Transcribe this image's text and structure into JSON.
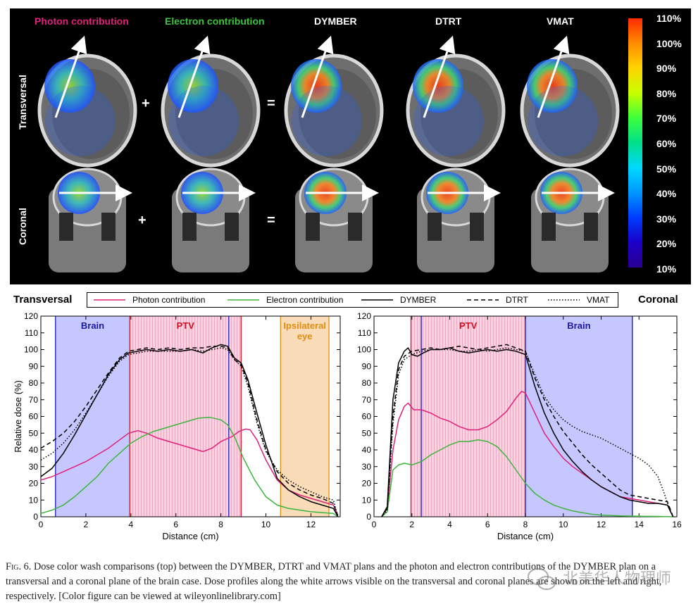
{
  "panel_titles": [
    {
      "text": "Photon contribution",
      "color": "#e0207a"
    },
    {
      "text": "Electron contribution",
      "color": "#3cc43c"
    },
    {
      "text": "DYMBER",
      "color": "#ffffff"
    },
    {
      "text": "DTRT",
      "color": "#ffffff"
    },
    {
      "text": "VMAT",
      "color": "#ffffff"
    }
  ],
  "row_labels": {
    "transversal": "Transversal",
    "coronal": "Coronal"
  },
  "operators": {
    "plus": "+",
    "equals": "="
  },
  "colorbar": {
    "labels": [
      "110%",
      "100%",
      "90%",
      "80%",
      "70%",
      "60%",
      "50%",
      "40%",
      "30%",
      "20%",
      "10%"
    ],
    "colors": [
      "#ff2a00",
      "#ff8c00",
      "#ffd400",
      "#c8ff00",
      "#3cff3c",
      "#00e08a",
      "#00d8ff",
      "#0096ff",
      "#003cff",
      "#1a00c8",
      "#2a0090"
    ]
  },
  "profile_titles": {
    "left": "Transversal",
    "right": "Coronal"
  },
  "legend": [
    {
      "name": "Photon contribution",
      "color": "#e0207a",
      "dash": "solid"
    },
    {
      "name": "Electron contribution",
      "color": "#3cb43c",
      "dash": "solid"
    },
    {
      "name": "DYMBER",
      "color": "#000000",
      "dash": "solid"
    },
    {
      "name": "DTRT",
      "color": "#000000",
      "dash": "dashed"
    },
    {
      "name": "VMAT",
      "color": "#000000",
      "dash": "dotted"
    }
  ],
  "chart_data": [
    {
      "type": "line",
      "title": "Transversal",
      "xlabel": "Distance (cm)",
      "ylabel": "Relative dose (%)",
      "xlim": [
        0,
        13.3
      ],
      "ylim": [
        0,
        120
      ],
      "xticks": [
        0,
        2,
        4,
        6,
        8,
        10,
        12
      ],
      "yticks": [
        0,
        10,
        20,
        30,
        40,
        50,
        60,
        70,
        80,
        90,
        100,
        110,
        120
      ],
      "regions": [
        {
          "name": "Brain",
          "x0": 0.65,
          "x1": 3.95,
          "fill": "#b4b4ff",
          "edge": "#2020c0",
          "label_color": "#1a1aa0",
          "pattern": "none"
        },
        {
          "name": "PTV",
          "x0": 3.95,
          "x1": 8.9,
          "fill": "#f4c4cc",
          "edge": "#e02030",
          "label_color": "#d01020",
          "pattern": "stripes"
        },
        {
          "name": "Ipsilateral eye",
          "label_lines": [
            "Ipsilateral",
            "eye"
          ],
          "x0": 10.65,
          "x1": 12.8,
          "fill": "#f8d2a0",
          "edge": "#e08c10",
          "label_color": "#e08c10",
          "pattern": "none"
        }
      ],
      "extra_lines": [
        {
          "x": 8.35,
          "color": "#2020c0"
        }
      ],
      "series": [
        {
          "name": "Photon contribution",
          "x": [
            0,
            0.5,
            1,
            1.5,
            2,
            2.5,
            3,
            3.5,
            3.9,
            4.3,
            4.7,
            5.2,
            5.7,
            6.2,
            6.7,
            7.2,
            7.6,
            8.0,
            8.5,
            8.8,
            9.1,
            9.3,
            9.6,
            10.0,
            10.5,
            11.0,
            11.5,
            12.0,
            12.5,
            13.0,
            13.2
          ],
          "y": [
            22,
            24,
            27,
            30,
            33,
            37,
            41,
            46,
            50,
            51.5,
            50,
            47,
            45,
            43,
            41,
            39,
            41,
            45,
            48,
            51,
            52.5,
            52,
            46,
            34,
            22,
            16,
            13,
            11,
            9,
            7,
            1
          ]
        },
        {
          "name": "Electron contribution",
          "x": [
            0,
            0.5,
            1,
            1.5,
            2,
            2.5,
            3,
            3.5,
            4,
            4.5,
            5,
            5.5,
            6,
            6.5,
            7,
            7.5,
            8,
            8.3,
            8.6,
            9.0,
            9.5,
            10.0,
            10.5,
            11.0,
            11.5,
            12.0,
            12.5,
            13.0,
            13.2
          ],
          "y": [
            2,
            4,
            7,
            12,
            18,
            24,
            32,
            38,
            44,
            48,
            51,
            53,
            55,
            57,
            59,
            59.5,
            58,
            55,
            48,
            35,
            22,
            12,
            7,
            5,
            4,
            3,
            2.5,
            2,
            0
          ]
        },
        {
          "name": "DYMBER",
          "x": [
            0,
            0.5,
            1,
            1.5,
            2,
            2.5,
            3,
            3.5,
            3.9,
            4.3,
            4.7,
            5.2,
            5.7,
            6.2,
            6.7,
            7.2,
            7.6,
            8.0,
            8.3,
            8.6,
            8.9,
            9.2,
            9.6,
            10.0,
            10.5,
            11.0,
            11.5,
            12.0,
            12.5,
            13.0,
            13.2
          ],
          "y": [
            24,
            29,
            38,
            49,
            61,
            73,
            85,
            94,
            98,
            99,
            100,
            99,
            100,
            99,
            100,
            98,
            101,
            103,
            102,
            95,
            92,
            82,
            62,
            43,
            23,
            16,
            12,
            9,
            7,
            5,
            0
          ]
        },
        {
          "name": "DTRT",
          "x": [
            0,
            0.5,
            1,
            1.5,
            2,
            2.5,
            3,
            3.5,
            3.9,
            4.3,
            4.7,
            5.2,
            5.7,
            6.2,
            6.7,
            7.2,
            7.6,
            8.0,
            8.3,
            8.6,
            8.9,
            9.2,
            9.6,
            10.0,
            10.5,
            11.0,
            11.5,
            12.0,
            12.5,
            13.0,
            13.2
          ],
          "y": [
            41,
            45,
            50,
            57,
            66,
            76,
            86,
            95,
            99,
            100,
            101,
            100,
            101,
            100,
            101,
            101,
            102,
            102,
            101,
            94,
            91,
            80,
            58,
            40,
            27,
            20,
            16,
            13,
            11,
            8,
            0
          ]
        },
        {
          "name": "VMAT",
          "x": [
            0,
            0.5,
            1,
            1.5,
            2,
            2.5,
            3,
            3.5,
            3.9,
            4.3,
            4.7,
            5.2,
            5.7,
            6.2,
            6.7,
            7.2,
            7.6,
            8.0,
            8.3,
            8.6,
            8.9,
            9.2,
            9.6,
            10.0,
            10.5,
            11.0,
            11.5,
            12.0,
            12.5,
            13.0,
            13.2
          ],
          "y": [
            34,
            38,
            44,
            52,
            62,
            73,
            84,
            93,
            97,
            98,
            99,
            99,
            99,
            99,
            100,
            99,
            100,
            101,
            100,
            94,
            90,
            78,
            56,
            39,
            28,
            22,
            18,
            15,
            12,
            10,
            0
          ]
        }
      ]
    },
    {
      "type": "line",
      "title": "Coronal",
      "xlabel": "Distance (cm)",
      "ylabel": "",
      "xlim": [
        0,
        16
      ],
      "ylim": [
        0,
        120
      ],
      "xticks": [
        0,
        2,
        4,
        6,
        8,
        10,
        12,
        14,
        16
      ],
      "yticks": [
        0,
        10,
        20,
        30,
        40,
        50,
        60,
        70,
        80,
        90,
        100,
        110,
        120
      ],
      "regions": [
        {
          "name": "PTV",
          "x0": 1.95,
          "x1": 8.0,
          "fill": "#f4c4cc",
          "edge": "#e02030",
          "label_color": "#d01020",
          "pattern": "stripes"
        },
        {
          "name": "Brain",
          "x0": 8.0,
          "x1": 13.65,
          "fill": "#b4b4ff",
          "edge": "#2020c0",
          "label_color": "#1a1aa0",
          "pattern": "none"
        }
      ],
      "extra_lines": [
        {
          "x": 2.5,
          "color": "#2020c0"
        },
        {
          "x": 13.65,
          "color": "#2020c0"
        }
      ],
      "series": [
        {
          "name": "Photon contribution",
          "x": [
            0.4,
            0.7,
            1.0,
            1.3,
            1.6,
            1.8,
            2.1,
            2.5,
            3.0,
            3.5,
            4.0,
            4.5,
            5.0,
            5.5,
            6.0,
            6.5,
            7.0,
            7.5,
            7.8,
            8.0,
            8.5,
            9.0,
            9.5,
            10.0,
            10.5,
            11.0,
            11.5,
            12.0,
            12.5,
            13.0,
            13.5,
            14.0,
            14.5,
            15.0,
            15.5,
            15.8
          ],
          "y": [
            0,
            5,
            40,
            58,
            66,
            68,
            64,
            64,
            62,
            59,
            57,
            54,
            52,
            52,
            54,
            58,
            63,
            71,
            75,
            74,
            62,
            50,
            42,
            35,
            30,
            26,
            22,
            18,
            15,
            12,
            11,
            10,
            9,
            8,
            7,
            0
          ]
        },
        {
          "name": "Electron contribution",
          "x": [
            0.4,
            0.7,
            1.0,
            1.3,
            1.6,
            2.0,
            2.5,
            3.0,
            3.5,
            4.0,
            4.5,
            5.0,
            5.5,
            6.0,
            6.5,
            7.0,
            7.5,
            8.0,
            8.5,
            9.0,
            9.5,
            10.0,
            10.5,
            11.0,
            11.5,
            12.0,
            13.0,
            14.0,
            15.0,
            15.8
          ],
          "y": [
            0,
            3,
            28,
            31,
            32,
            31,
            33,
            37,
            40,
            43,
            45,
            45,
            46,
            45,
            42,
            36,
            28,
            20,
            14,
            10,
            7,
            5,
            3.5,
            2.5,
            1.5,
            1,
            0.5,
            0.3,
            0.2,
            0
          ]
        },
        {
          "name": "DYMBER",
          "x": [
            0.4,
            0.7,
            1.0,
            1.3,
            1.6,
            1.8,
            2.0,
            2.3,
            2.6,
            3.0,
            3.5,
            4.0,
            4.5,
            5.0,
            5.5,
            6.0,
            6.5,
            7.0,
            7.5,
            8.0,
            8.5,
            9.0,
            9.5,
            10.0,
            10.5,
            11.0,
            11.5,
            12.0,
            12.5,
            13.0,
            13.5,
            14.0,
            14.5,
            15.0,
            15.5,
            15.8
          ],
          "y": [
            0,
            6,
            70,
            92,
            99,
            101,
            97,
            96,
            98,
            100,
            100,
            101,
            99,
            98,
            99,
            100,
            99,
            100,
            99,
            97,
            78,
            62,
            50,
            40,
            33,
            27,
            22,
            18,
            15,
            12,
            10,
            9,
            8,
            8,
            7,
            0
          ]
        },
        {
          "name": "DTRT",
          "x": [
            0.4,
            0.7,
            1.0,
            1.3,
            1.6,
            2.0,
            2.5,
            3.0,
            3.5,
            4.0,
            4.5,
            5.0,
            5.5,
            6.0,
            6.5,
            7.0,
            7.5,
            8.0,
            8.5,
            9.0,
            9.5,
            10.0,
            10.5,
            11.0,
            11.5,
            12.0,
            12.5,
            13.0,
            13.5,
            14.0,
            14.5,
            15.0,
            15.5,
            15.8
          ],
          "y": [
            0,
            5,
            60,
            88,
            96,
            99,
            100,
            101,
            100,
            101,
            102,
            101,
            100,
            101,
            102,
            103,
            101,
            99,
            83,
            70,
            60,
            51,
            44,
            37,
            31,
            26,
            21,
            16,
            13,
            12,
            11,
            10,
            9,
            0
          ]
        },
        {
          "name": "VMAT",
          "x": [
            0.4,
            0.7,
            1.0,
            1.3,
            1.6,
            2.0,
            2.5,
            3.0,
            3.5,
            4.0,
            4.5,
            5.0,
            5.5,
            6.0,
            6.5,
            7.0,
            7.5,
            8.0,
            8.5,
            9.0,
            9.5,
            10.0,
            10.5,
            11.0,
            11.5,
            12.0,
            12.5,
            13.0,
            13.5,
            14.0,
            14.5,
            15.0,
            15.3,
            15.6,
            15.8
          ],
          "y": [
            0,
            4,
            55,
            85,
            94,
            97,
            99,
            100,
            100,
            100,
            99,
            99,
            100,
            99,
            100,
            101,
            100,
            99,
            85,
            72,
            64,
            58,
            54,
            51,
            49,
            47,
            44,
            41,
            38,
            35,
            31,
            24,
            15,
            5,
            0
          ]
        }
      ]
    }
  ],
  "caption": {
    "fig_label": "Fig. 6.",
    "text": "Dose color wash comparisons (top) between the DYMBER, DTRT and VMAT plans and the photon and electron contributions of the DYMBER plan on a transversal and a coronal plane of the brain case. Dose profiles along the white arrows visible on the transversal and coronal planes are shown on the left and right, respectively. [Color figure can be viewed at wileyonlinelibrary.com]"
  },
  "watermark": "北美华人物理师"
}
